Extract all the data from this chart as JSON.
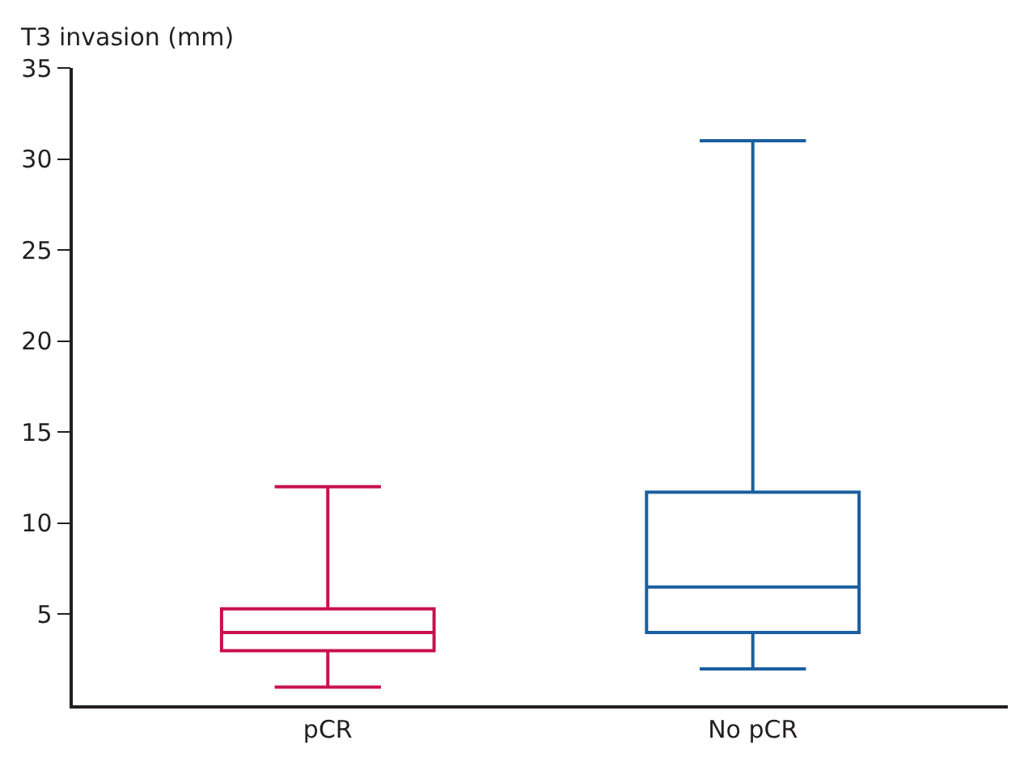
{
  "chart_data": {
    "type": "box",
    "ylabel": "T3 invasion (mm)",
    "categories": [
      "pCR",
      "No pCR"
    ],
    "boxes": [
      {
        "low": 1,
        "q1": 3,
        "median": 4,
        "q3": 5.3,
        "high": 12
      },
      {
        "low": 2,
        "q1": 4,
        "median": 6.5,
        "q3": 11.7,
        "high": 31
      }
    ],
    "colors": [
      "#c8104e",
      "#1a5fa0"
    ],
    "ylim": [
      0,
      35
    ],
    "yticks": [
      5,
      10,
      15,
      20,
      25,
      30,
      35
    ]
  }
}
